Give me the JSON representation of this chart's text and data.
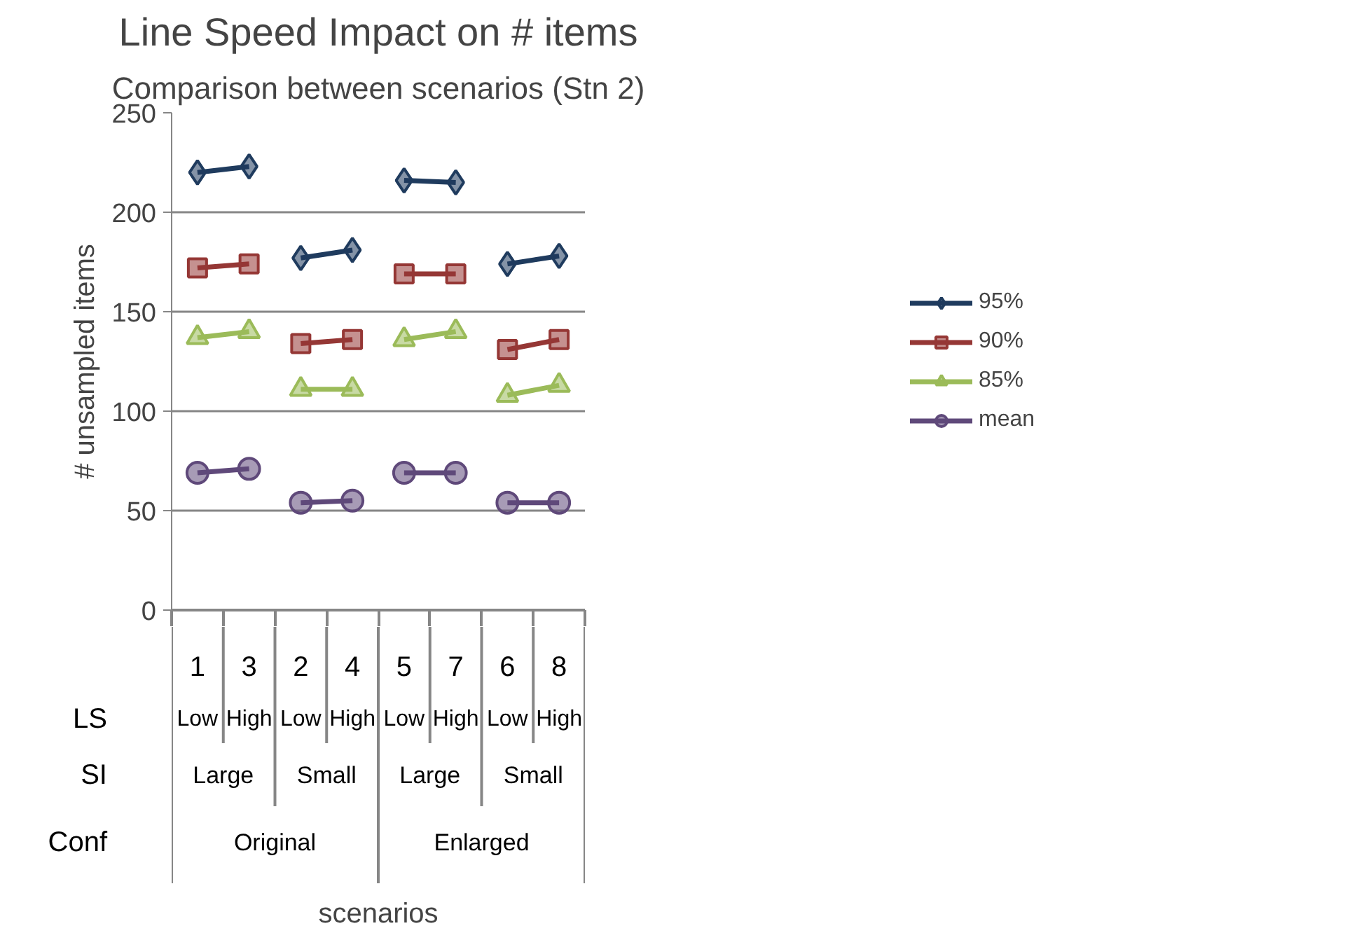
{
  "chart_data": {
    "type": "line",
    "title": "Line Speed Impact on # items",
    "subtitle": "Comparison between scenarios (Stn 2)",
    "ylabel": "# unsampled items",
    "categories": [
      "1\nLow",
      "3\nHigh",
      "2\nLow",
      "4\nHigh",
      "5\nLow",
      "7\nHigh",
      "6\nLow",
      "8\nHigh"
    ],
    "annotations": [
      "LS",
      "SI",
      "Conf",
      "Large",
      "Small",
      "Large",
      "Small",
      "Original",
      "Enlarged",
      "scenarios"
    ],
    "ylim": [
      0,
      250
    ],
    "yticks": [
      0,
      50,
      100,
      150,
      200,
      250
    ],
    "grid": "y",
    "legend": "right",
    "line_style": "solid",
    "series": [
      {
        "name": "95%",
        "color": "#1f3b5e",
        "marker": "diamond",
        "values": [
          220,
          223,
          null,
          null,
          null,
          null,
          null,
          null
        ]
      },
      {
        "color": "#1f3b5e",
        "marker": "diamond",
        "values": [
          null,
          null,
          177,
          181,
          null,
          null,
          null,
          null
        ]
      },
      {
        "color": "#1f3b5e",
        "marker": "diamond",
        "values": [
          null,
          null,
          null,
          null,
          216,
          215,
          null,
          null
        ]
      },
      {
        "color": "#1f3b5e",
        "marker": "diamond",
        "values": [
          null,
          null,
          null,
          null,
          null,
          null,
          174,
          178
        ]
      },
      {
        "name": "90%",
        "color": "#953735",
        "marker": "square",
        "values": [
          172,
          174,
          null,
          null,
          null,
          null,
          null,
          null
        ]
      },
      {
        "color": "#953735",
        "marker": "square",
        "values": [
          null,
          null,
          134,
          136,
          null,
          null,
          null,
          null
        ]
      },
      {
        "color": "#953735",
        "marker": "square",
        "values": [
          null,
          null,
          null,
          null,
          169,
          169,
          null,
          null
        ]
      },
      {
        "color": "#953735",
        "marker": "square",
        "values": [
          null,
          null,
          null,
          null,
          null,
          null,
          131,
          136
        ]
      },
      {
        "name": "85%",
        "color": "#9bbb59",
        "marker": "triangle",
        "values": [
          137,
          140,
          null,
          null,
          null,
          null,
          null,
          null
        ]
      },
      {
        "color": "#9bbb59",
        "marker": "triangle",
        "values": [
          null,
          null,
          111,
          111,
          null,
          null,
          null,
          null
        ]
      },
      {
        "color": "#9bbb59",
        "marker": "triangle",
        "values": [
          null,
          null,
          null,
          null,
          136,
          140,
          null,
          null
        ]
      },
      {
        "color": "#9bbb59",
        "marker": "triangle",
        "values": [
          null,
          null,
          null,
          null,
          null,
          null,
          108,
          113
        ]
      },
      {
        "name": "mean",
        "color": "#5f497a",
        "marker": "circle",
        "values": [
          69,
          71,
          null,
          null,
          null,
          null,
          null,
          null
        ]
      },
      {
        "color": "#5f497a",
        "marker": "circle",
        "values": [
          null,
          null,
          54,
          55,
          null,
          null,
          null,
          null
        ]
      },
      {
        "color": "#5f497a",
        "marker": "circle",
        "values": [
          null,
          null,
          null,
          null,
          69,
          69,
          null,
          null
        ]
      },
      {
        "color": "#5f497a",
        "marker": "circle",
        "values": [
          null,
          null,
          null,
          null,
          null,
          null,
          54,
          54
        ]
      }
    ]
  }
}
